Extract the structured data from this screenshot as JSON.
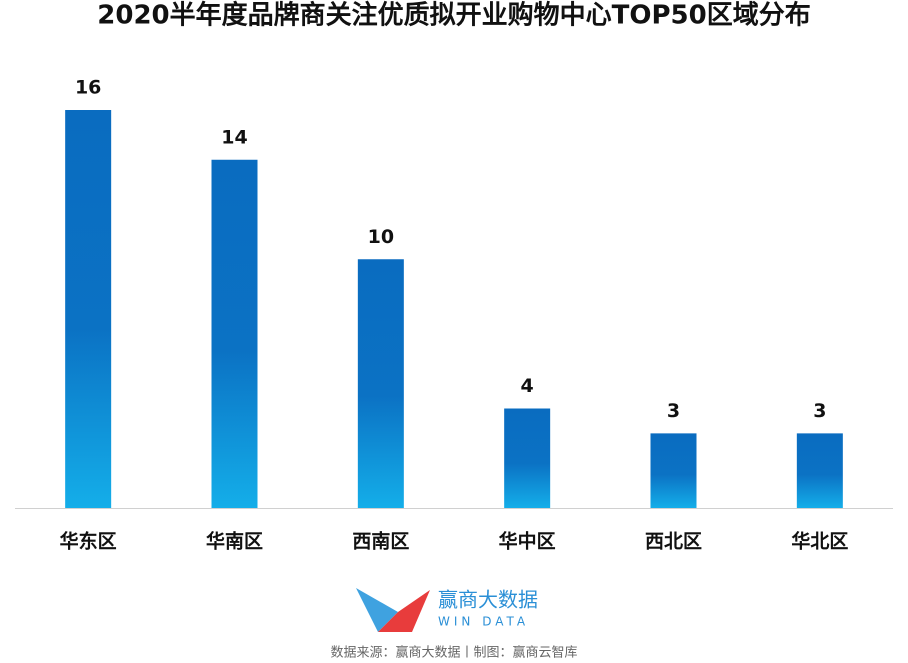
{
  "chart_data": {
    "type": "bar",
    "title": "2020半年度品牌商关注优质拟开业购物中心TOP50区域分布",
    "categories": [
      "华东区",
      "华南区",
      "西南区",
      "华中区",
      "西北区",
      "华北区"
    ],
    "values": [
      16,
      14,
      10,
      4,
      3,
      3
    ],
    "color": "#0a6cc0",
    "logo": {
      "name": "赢商大数据",
      "subtitle": "WIN DATA"
    },
    "source": "数据来源：赢商大数据丨制图：赢商云智库"
  }
}
